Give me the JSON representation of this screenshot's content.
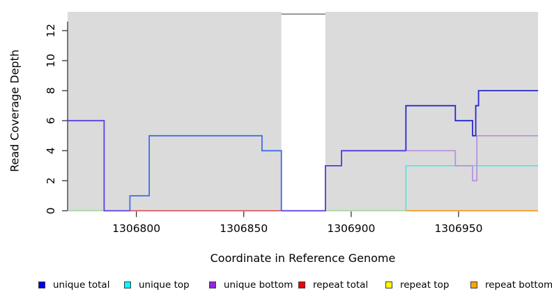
{
  "chart_data": {
    "type": "line",
    "subtype": "step-coverage",
    "title": "",
    "xlabel": "Coordinate in Reference Genome",
    "ylabel": "Read Coverage Depth",
    "xlim": [
      1306768,
      1306987
    ],
    "ylim": [
      0,
      13.25
    ],
    "grid": false,
    "panel_bg": "#dbdbdb",
    "axis_color": "#000000",
    "x_ticks": {
      "values": [
        1306800,
        1306850,
        1306900,
        1306950
      ],
      "labels": [
        "1306800",
        "1306850",
        "1306900",
        "1306950"
      ]
    },
    "y_ticks": {
      "values": [
        0,
        2,
        4,
        6,
        8,
        10,
        12
      ],
      "labels": [
        "0",
        "2",
        "4",
        "6",
        "8",
        "10",
        "12"
      ]
    },
    "masked_region": {
      "x0": 1306867.5,
      "x1": 1306888,
      "fill": "#ffffff",
      "top_border_color": "#808080",
      "top_border_y_value": 13.1
    },
    "series": [
      {
        "name": "unique total",
        "color": "#0000EE",
        "step_points": [
          [
            1306768,
            6
          ],
          [
            1306785,
            0
          ],
          [
            1306797,
            1
          ],
          [
            1306806,
            5
          ],
          [
            1306858.5,
            4
          ],
          [
            1306867.5,
            0
          ],
          [
            1306888,
            3
          ],
          [
            1306895.5,
            4
          ],
          [
            1306925.5,
            7
          ],
          [
            1306948.5,
            6
          ],
          [
            1306956.5,
            5
          ],
          [
            1306958,
            7
          ],
          [
            1306959.3,
            8
          ],
          [
            1306987,
            8
          ]
        ]
      },
      {
        "name": "unique top",
        "color": "#00FFFF",
        "step_points": [
          [
            1306768,
            0
          ],
          [
            1306925.5,
            3
          ],
          [
            1306987,
            3
          ]
        ]
      },
      {
        "name": "unique bottom",
        "color": "#9326DB",
        "step_points": [
          [
            1306768,
            6
          ],
          [
            1306785,
            0
          ],
          [
            1306797,
            1
          ],
          [
            1306806,
            5
          ],
          [
            1306858.5,
            4
          ],
          [
            1306867.5,
            0
          ],
          [
            1306888,
            3
          ],
          [
            1306895.5,
            4
          ],
          [
            1306948.5,
            3
          ],
          [
            1306956.5,
            2
          ],
          [
            1306958.5,
            5
          ],
          [
            1306987,
            5
          ]
        ]
      },
      {
        "name": "repeat total",
        "color": "#EE0000",
        "step_points": [
          [
            1306797,
            0
          ],
          [
            1306867.5,
            0
          ]
        ]
      },
      {
        "name": "repeat top",
        "color": "#FFFF00",
        "step_points": [
          [
            1306768,
            0
          ],
          [
            1306987,
            0
          ]
        ]
      },
      {
        "name": "repeat bottom",
        "color": "#FFA500",
        "step_points": [
          [
            1306925.5,
            0
          ],
          [
            1306987,
            0
          ]
        ]
      }
    ],
    "visual_segments": [
      {
        "name": "zero-line-pale-green-left",
        "color": "#9ed89e",
        "width": 1.5,
        "points": [
          [
            1306768,
            0
          ],
          [
            1306785,
            0
          ]
        ]
      },
      {
        "name": "zero-line-pale-green-mid",
        "color": "#9ed89e",
        "width": 1.5,
        "points": [
          [
            1306888,
            0
          ],
          [
            1306925.5,
            0
          ]
        ]
      },
      {
        "name": "zero-line-red",
        "color": "#e04050",
        "width": 1.5,
        "points": [
          [
            1306797,
            0
          ],
          [
            1306867.5,
            0
          ]
        ]
      },
      {
        "name": "zero-line-orange",
        "color": "#ff9a10",
        "width": 1.7,
        "points": [
          [
            1306925.5,
            0
          ],
          [
            1306987,
            0
          ]
        ]
      },
      {
        "name": "cyan-unique-top",
        "color": "#3fe6e6",
        "width": 1.5,
        "points": [
          [
            1306925.5,
            0
          ],
          [
            1306925.5,
            3
          ],
          [
            1306987,
            3
          ]
        ]
      },
      {
        "name": "purple-unique-bottom",
        "color": "#b78ee0",
        "width": 1.7,
        "points": [
          [
            1306895.5,
            4
          ],
          [
            1306948.5,
            4
          ],
          [
            1306948.5,
            3
          ],
          [
            1306956.5,
            3
          ],
          [
            1306956.5,
            2
          ],
          [
            1306958.5,
            2
          ],
          [
            1306958.5,
            5
          ],
          [
            1306987,
            5
          ]
        ]
      },
      {
        "name": "violet-blue-left",
        "color": "#5a3ee0",
        "width": 1.8,
        "points": [
          [
            1306768,
            6
          ],
          [
            1306785,
            6
          ],
          [
            1306785,
            0
          ],
          [
            1306797,
            0
          ]
        ]
      },
      {
        "name": "bright-blue-mid",
        "color": "#3f6ce8",
        "width": 1.8,
        "points": [
          [
            1306797,
            0
          ],
          [
            1306797,
            1
          ],
          [
            1306806,
            1
          ],
          [
            1306806,
            5
          ],
          [
            1306858.5,
            5
          ],
          [
            1306858.5,
            4
          ],
          [
            1306867.5,
            4
          ],
          [
            1306867.5,
            0
          ]
        ]
      },
      {
        "name": "violet-blue-gap-and-post",
        "color": "#5039e4",
        "width": 1.8,
        "points": [
          [
            1306867.5,
            0
          ],
          [
            1306888,
            0
          ],
          [
            1306888,
            3
          ],
          [
            1306895.5,
            3
          ],
          [
            1306895.5,
            4
          ],
          [
            1306925.5,
            4
          ]
        ]
      },
      {
        "name": "strong-blue-right",
        "color": "#2626d2",
        "width": 1.8,
        "points": [
          [
            1306925.5,
            4
          ],
          [
            1306925.5,
            7
          ],
          [
            1306948.5,
            7
          ],
          [
            1306948.5,
            6
          ],
          [
            1306956.5,
            6
          ],
          [
            1306956.5,
            5
          ],
          [
            1306958,
            5
          ],
          [
            1306958,
            7
          ],
          [
            1306959.3,
            7
          ],
          [
            1306959.3,
            8
          ],
          [
            1306987,
            8
          ]
        ]
      }
    ],
    "legend_position": "bottom"
  },
  "legend": {
    "items": [
      {
        "label": "unique total",
        "color": "#0000EE"
      },
      {
        "label": "unique top",
        "color": "#00FFFF"
      },
      {
        "label": "unique bottom",
        "color": "#9326DB"
      },
      {
        "label": "repeat total",
        "color": "#EE0000"
      },
      {
        "label": "repeat top",
        "color": "#FFFF00"
      },
      {
        "label": "repeat bottom",
        "color": "#FFA500"
      }
    ]
  }
}
